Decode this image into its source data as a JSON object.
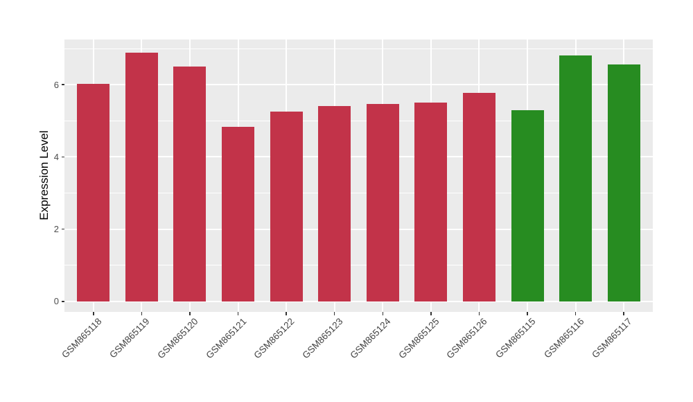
{
  "chart_data": {
    "type": "bar",
    "title": "",
    "xlabel": "",
    "ylabel": "Expression Level",
    "categories": [
      "GSM865118",
      "GSM865119",
      "GSM865120",
      "GSM865121",
      "GSM865122",
      "GSM865123",
      "GSM865124",
      "GSM865125",
      "GSM865126",
      "GSM865115",
      "GSM865116",
      "GSM865117"
    ],
    "values": [
      6.02,
      6.88,
      6.51,
      4.84,
      5.26,
      5.41,
      5.47,
      5.51,
      5.78,
      5.3,
      6.8,
      6.55
    ],
    "bar_groups": [
      "red",
      "red",
      "red",
      "red",
      "red",
      "red",
      "red",
      "red",
      "red",
      "green",
      "green",
      "green"
    ],
    "palette": {
      "red": "#C23349",
      "green": "#278C21"
    },
    "y_ticks": [
      0,
      2,
      4,
      6
    ],
    "y_minor_ticks": [
      1,
      3,
      5,
      7
    ],
    "ylim": [
      -0.29,
      7.25
    ],
    "grid": "on",
    "legend": "none",
    "colors": {
      "panel_background": "#EBEBEB",
      "gridline": "#FFFFFF",
      "tick_mark": "#333333",
      "axis_text": "#4D4D4D",
      "category_text": "#444444",
      "figure_background": "#FFFFFF"
    }
  }
}
